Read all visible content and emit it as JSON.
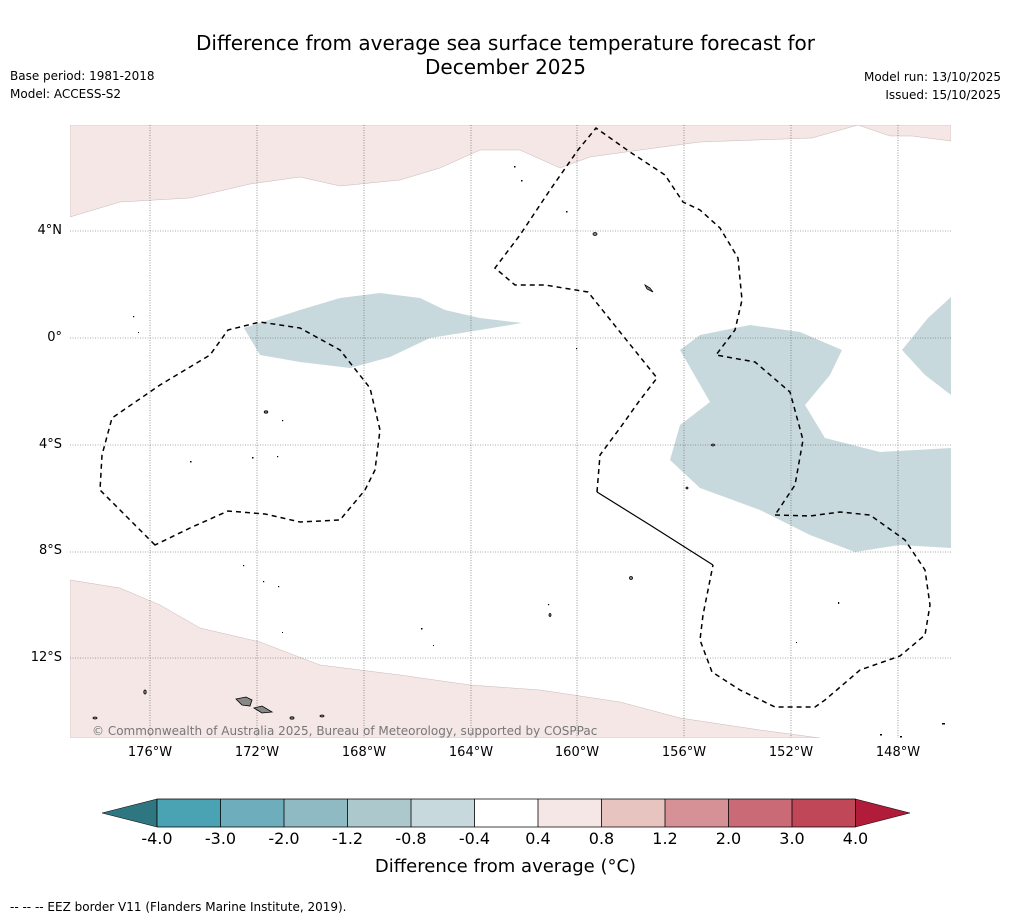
{
  "header": {
    "title_line1": "Difference from average sea surface temperature forecast for",
    "title_line2": "December 2025",
    "base_period": "Base period: 1981-2018",
    "model": "Model: ACCESS-S2",
    "model_run": "Model run: 13/10/2025",
    "issued": "Issued: 15/10/2025"
  },
  "map": {
    "lat_labels": [
      "4°N",
      "0°",
      "4°S",
      "8°S",
      "12°S"
    ],
    "lon_labels": [
      "176°W",
      "172°W",
      "168°W",
      "164°W",
      "160°W",
      "156°W",
      "152°W",
      "148°W"
    ],
    "copyright": "© Commonwealth of Australia 2025, Bureau of Meteorology, supported by COSPPac",
    "colors": {
      "warm_anomaly": "#f5e7e6",
      "cool_anomaly": "#c8d9dd",
      "ocean": "#ffffff",
      "grid": "#555555",
      "eez_border": "#000000"
    }
  },
  "colorbar": {
    "ticks": [
      "-4.0",
      "-3.0",
      "-2.0",
      "-1.2",
      "-0.8",
      "-0.4",
      "0.4",
      "0.8",
      "1.2",
      "2.0",
      "3.0",
      "4.0"
    ],
    "colors": [
      "#2f7780",
      "#4aa3b3",
      "#6eaebc",
      "#8fbac4",
      "#adc8cd",
      "#c8d9dd",
      "#ffffff",
      "#f5e7e6",
      "#e8c4c0",
      "#d69196",
      "#c96a76",
      "#c04757",
      "#b01c3a"
    ],
    "label": "Difference from average (°C)"
  },
  "footer": {
    "eez_note": "--  --  -- EEZ border V11 (Flanders Marine Institute, 2019)."
  }
}
